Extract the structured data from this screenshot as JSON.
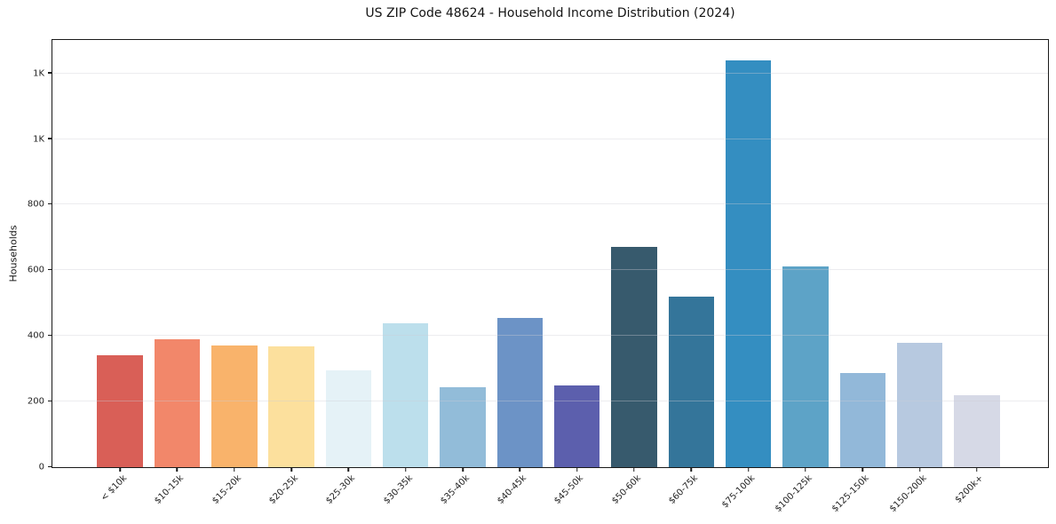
{
  "chart_data": {
    "type": "bar",
    "title": "US ZIP Code 48624 - Household Income Distribution (2024)",
    "xlabel": "",
    "ylabel": "Households",
    "categories": [
      "< $10k",
      "$10-15k",
      "$15-20k",
      "$20-25k",
      "$25-30k",
      "$30-35k",
      "$35-40k",
      "$40-45k",
      "$45-50k",
      "$50-60k",
      "$60-75k",
      "$75-100k",
      "$100-125k",
      "$125-150k",
      "$150-200k",
      "$200k+"
    ],
    "values": [
      342,
      390,
      371,
      368,
      296,
      438,
      245,
      454,
      249,
      670,
      521,
      1240,
      611,
      287,
      380,
      220
    ],
    "bar_colors": [
      "#d95f57",
      "#f2876a",
      "#f9b36b",
      "#fce09d",
      "#e5f2f7",
      "#bcdfec",
      "#92bcd9",
      "#6c93c6",
      "#5c5fad",
      "#375a6d",
      "#34759a",
      "#348ec1",
      "#5da3c7",
      "#92b8d9",
      "#b7c9e0",
      "#d6d9e6"
    ],
    "ylim": [
      0,
      1302
    ],
    "yticks": [
      {
        "value": 0,
        "label": "0"
      },
      {
        "value": 200,
        "label": "200"
      },
      {
        "value": 400,
        "label": "400"
      },
      {
        "value": 600,
        "label": "600"
      },
      {
        "value": 800,
        "label": "800"
      },
      {
        "value": 1000,
        "label": "1K"
      },
      {
        "value": 1200,
        "label": "1K"
      }
    ],
    "grid": "horizontal",
    "legend": "none",
    "colors": {
      "background": "#ffffff",
      "spine": "#1a1a1a",
      "gridline": "#ededf0",
      "tick_text": "#1f1f1f",
      "title_text": "#141414"
    }
  }
}
